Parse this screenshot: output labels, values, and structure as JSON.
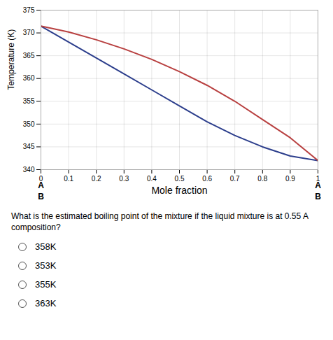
{
  "chart_data": {
    "type": "line",
    "x": [
      0,
      0.1,
      0.2,
      0.3,
      0.4,
      0.5,
      0.6,
      0.7,
      0.8,
      0.9,
      1.0
    ],
    "series": [
      {
        "color": "#2c3e8c",
        "values": [
          371.5,
          368.0,
          364.5,
          361.0,
          357.5,
          354.0,
          350.5,
          347.5,
          345.0,
          343.0,
          342.0
        ]
      },
      {
        "color": "#b84040",
        "values": [
          371.5,
          370.2,
          368.5,
          366.5,
          364.2,
          361.5,
          358.5,
          355.0,
          351.0,
          347.0,
          342.0
        ]
      }
    ],
    "xlim": [
      0,
      1
    ],
    "ylim": [
      340,
      375
    ],
    "xticks": [
      0,
      0.1,
      0.2,
      0.3,
      0.4,
      0.5,
      0.6,
      0.7,
      0.8,
      0.9,
      1
    ],
    "yticks": [
      340,
      345,
      350,
      355,
      360,
      365,
      370,
      375
    ],
    "ylabel": "Temperature (K)",
    "xlabel": "Mole fraction",
    "grid": true,
    "annotations": {
      "left": [
        "A",
        "B"
      ],
      "right": [
        "A",
        "B"
      ]
    },
    "question": "What is the estimated boiling point of the mixture if the liquid mixture is at 0.55 A composition?",
    "options": [
      "358K",
      "353K",
      "355K",
      "363K"
    ]
  }
}
